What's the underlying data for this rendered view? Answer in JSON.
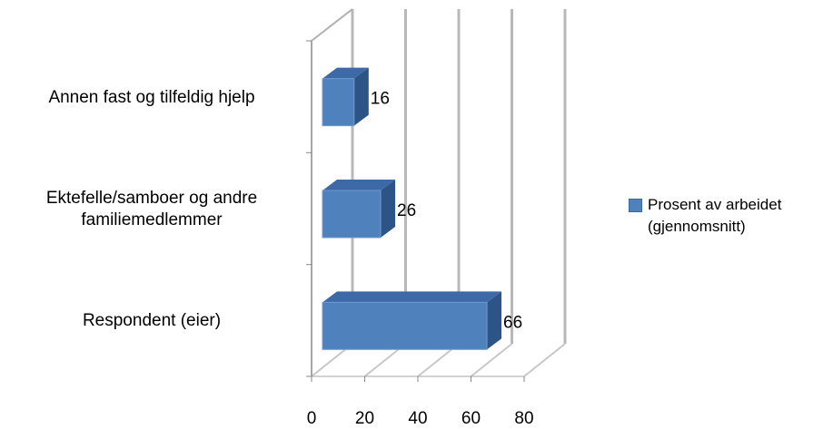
{
  "chart_data": {
    "type": "bar",
    "orientation": "horizontal",
    "three_d": true,
    "categories": [
      "Respondent (eier)",
      "Ektefelle/samboer og andre familiemedlemmer",
      "Annen fast og tilfeldig hjelp"
    ],
    "category_lines": [
      [
        "Respondent (eier)"
      ],
      [
        "Ektefelle/samboer og andre",
        "familiemedlemmer"
      ],
      [
        "Annen fast og tilfeldig hjelp"
      ]
    ],
    "series": [
      {
        "name": "Prosent av arbeidet (gjennomsnitt)",
        "values": [
          66,
          26,
          16
        ],
        "color": "#4f81bd"
      }
    ],
    "data_labels": [
      "66",
      "26",
      "16"
    ],
    "x_ticks": [
      "0",
      "20",
      "40",
      "60",
      "80"
    ],
    "xlim": [
      0,
      80
    ],
    "grid": true,
    "legend_position": "right",
    "legend_lines": [
      "Prosent av arbeidet",
      "(gjennomsnitt)"
    ]
  }
}
